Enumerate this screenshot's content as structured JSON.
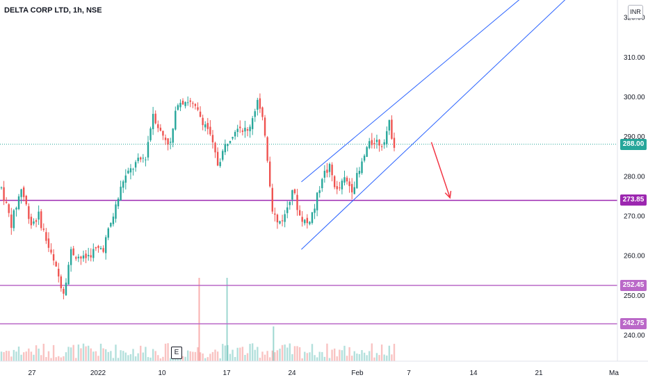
{
  "header": {
    "title": "DELTA CORP LTD, 1h, NSE"
  },
  "axis": {
    "currency": "INR",
    "event_badge": "E"
  },
  "colors": {
    "up": "#26a69a",
    "down": "#ef5350",
    "channel": "#2962ff",
    "level": "#9c27b0",
    "level_light": "#ba68c8",
    "current": "#26a69a",
    "arrow": "#f23645"
  },
  "price_tags": [
    {
      "id": "current",
      "value": "288.00",
      "color": "#26a69a"
    },
    {
      "id": "level1",
      "value": "273.85",
      "color": "#9c27b0"
    },
    {
      "id": "level2",
      "value": "252.45",
      "color": "#ba68c8"
    },
    {
      "id": "level3",
      "value": "242.75",
      "color": "#ba68c8"
    }
  ],
  "chart_data": {
    "type": "candlestick",
    "title": "DELTA CORP LTD, 1h, NSE",
    "y_ticks": [
      "240.00",
      "250.00",
      "260.00",
      "270.00",
      "280.00",
      "290.00",
      "300.00",
      "310.00",
      "320.00"
    ],
    "x_ticks": [
      "27",
      "2022",
      "10",
      "17",
      "24",
      "Feb",
      "7",
      "14",
      "21",
      "Ma"
    ],
    "ylim": [
      232,
      322
    ],
    "horizontal_levels": [
      273.85,
      252.45,
      242.75
    ],
    "current_price": 288.0,
    "channel": {
      "lower": {
        "from": {
          "date": "Jan 25",
          "price": 261.5
        },
        "to": {
          "date": "Mar 1",
          "price": 339
        }
      },
      "upper": {
        "from": {
          "date": "Jan 25",
          "price": 278.5
        },
        "to": {
          "date": "Feb 28",
          "price": 345
        }
      }
    },
    "projection_arrow": {
      "from": {
        "date": "Feb 8",
        "price": 288.5
      },
      "to": {
        "date": "Feb 10",
        "price": 274.5
      }
    },
    "volume_spikes": [
      {
        "date": "Jan 14",
        "level": "high"
      },
      {
        "date": "Jan 17",
        "level": "high"
      },
      {
        "date": "Jan 22",
        "level": "medium"
      }
    ]
  }
}
